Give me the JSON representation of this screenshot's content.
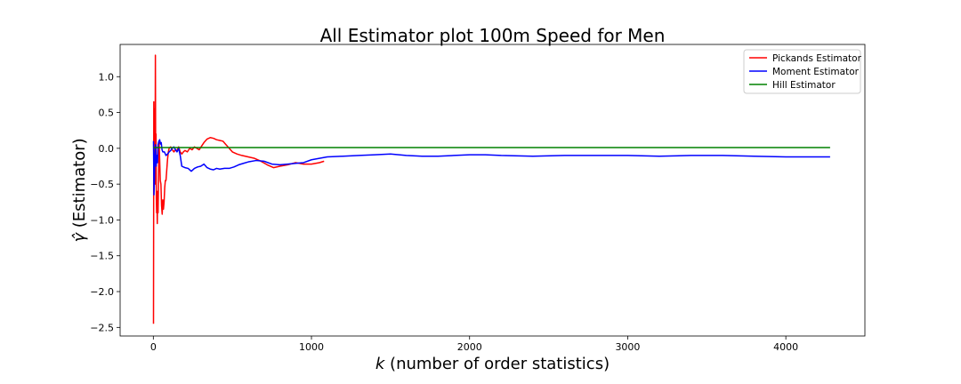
{
  "chart_data": {
    "type": "line",
    "title": "All Estimator plot 100m Speed for Men",
    "xlabel_var": "k",
    "xlabel_rest": " (number of order statistics)",
    "ylabel_var": "γ̂",
    "ylabel_rest": " (Estimator)",
    "xlim": [
      -210,
      4500
    ],
    "ylim": [
      -2.62,
      1.45
    ],
    "xticks": [
      0,
      1000,
      2000,
      3000,
      4000
    ],
    "xtick_labels": [
      "0",
      "1000",
      "2000",
      "3000",
      "4000"
    ],
    "yticks": [
      1.0,
      0.5,
      0.0,
      -0.5,
      -1.0,
      -1.5,
      -2.0,
      -2.5
    ],
    "ytick_labels": [
      "1.0",
      "0.5",
      "0.0",
      "−0.5",
      "−1.0",
      "−1.5",
      "−2.0",
      "−2.5"
    ],
    "grid": false,
    "legend_position": "top-right",
    "series": [
      {
        "name": "Pickands Estimator",
        "color": "#ff0000",
        "x": [
          1,
          3,
          5,
          7,
          9,
          11,
          13,
          15,
          17,
          19,
          21,
          23,
          25,
          27,
          30,
          33,
          36,
          40,
          44,
          48,
          52,
          56,
          60,
          64,
          68,
          72,
          76,
          80,
          85,
          90,
          95,
          100,
          110,
          120,
          130,
          140,
          150,
          160,
          170,
          180,
          190,
          200,
          215,
          230,
          245,
          260,
          275,
          290,
          305,
          320,
          340,
          360,
          380,
          400,
          420,
          440,
          460,
          480,
          500,
          530,
          560,
          600,
          640,
          680,
          720,
          760,
          800,
          850,
          900,
          950,
          1000,
          1050,
          1080
        ],
        "y": [
          -2.45,
          0.65,
          -0.2,
          0.55,
          0.1,
          -0.5,
          1.3,
          -0.3,
          0.2,
          -0.7,
          -0.9,
          -0.75,
          -1.05,
          -0.6,
          -0.9,
          -0.4,
          0.1,
          -0.15,
          -0.45,
          -0.5,
          -0.8,
          -0.92,
          -0.72,
          -0.85,
          -0.75,
          -0.55,
          -0.45,
          -0.45,
          -0.3,
          -0.15,
          -0.05,
          0.0,
          0.02,
          -0.02,
          -0.05,
          -0.02,
          -0.03,
          0.02,
          -0.05,
          -0.08,
          -0.05,
          -0.03,
          -0.05,
          0.0,
          -0.02,
          0.02,
          0.0,
          -0.02,
          0.03,
          0.08,
          0.13,
          0.15,
          0.14,
          0.12,
          0.11,
          0.1,
          0.05,
          0.0,
          -0.05,
          -0.08,
          -0.1,
          -0.12,
          -0.14,
          -0.18,
          -0.23,
          -0.27,
          -0.25,
          -0.23,
          -0.2,
          -0.22,
          -0.22,
          -0.2,
          -0.18
        ]
      },
      {
        "name": "Moment Estimator",
        "color": "#0000ff",
        "x": [
          1,
          4,
          7,
          10,
          14,
          18,
          22,
          26,
          30,
          35,
          40,
          45,
          50,
          55,
          60,
          70,
          80,
          90,
          100,
          110,
          120,
          130,
          140,
          150,
          160,
          170,
          180,
          190,
          200,
          220,
          240,
          260,
          280,
          300,
          320,
          340,
          360,
          380,
          400,
          420,
          450,
          480,
          510,
          540,
          570,
          600,
          650,
          700,
          750,
          800,
          850,
          900,
          950,
          1000,
          1100,
          1200,
          1300,
          1400,
          1500,
          1600,
          1700,
          1800,
          1900,
          2000,
          2100,
          2200,
          2400,
          2600,
          2800,
          3000,
          3200,
          3400,
          3600,
          3800,
          4000,
          4200,
          4280
        ],
        "y": [
          0.1,
          -0.65,
          -0.45,
          -0.1,
          0.05,
          -0.25,
          -0.1,
          -0.2,
          0.05,
          0.1,
          0.12,
          0.06,
          0.08,
          -0.02,
          -0.05,
          -0.05,
          -0.1,
          -0.08,
          -0.05,
          -0.03,
          0.0,
          0.02,
          -0.02,
          -0.05,
          0.0,
          -0.1,
          -0.25,
          -0.26,
          -0.27,
          -0.28,
          -0.32,
          -0.28,
          -0.26,
          -0.25,
          -0.22,
          -0.27,
          -0.29,
          -0.3,
          -0.28,
          -0.29,
          -0.28,
          -0.28,
          -0.26,
          -0.23,
          -0.21,
          -0.19,
          -0.17,
          -0.18,
          -0.22,
          -0.23,
          -0.22,
          -0.21,
          -0.2,
          -0.16,
          -0.12,
          -0.11,
          -0.1,
          -0.09,
          -0.08,
          -0.1,
          -0.11,
          -0.11,
          -0.1,
          -0.09,
          -0.09,
          -0.1,
          -0.11,
          -0.1,
          -0.1,
          -0.1,
          -0.11,
          -0.1,
          -0.1,
          -0.11,
          -0.12,
          -0.12,
          -0.12
        ]
      },
      {
        "name": "Hill Estimator",
        "color": "#008000",
        "x": [
          1,
          4280
        ],
        "y": [
          0.01,
          0.01
        ]
      }
    ]
  }
}
